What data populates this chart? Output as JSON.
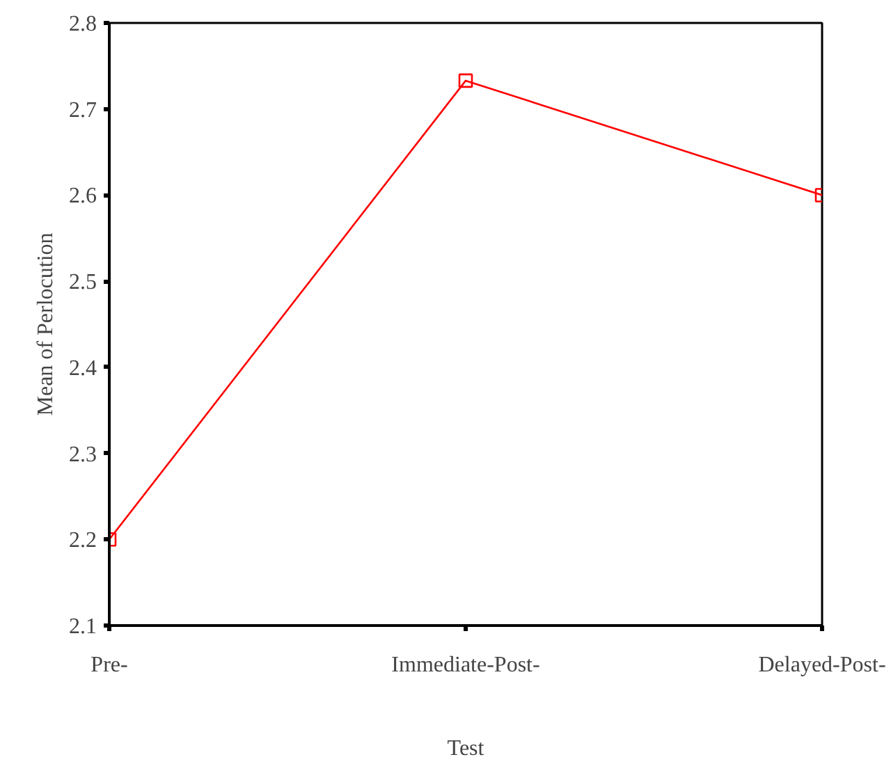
{
  "chart_data": {
    "type": "line",
    "xlabel": "Test",
    "ylabel": "Mean of Perlocution",
    "categories": [
      "Pre-",
      "Immediate-Post-",
      "Delayed-Post-"
    ],
    "series": [
      {
        "color": "#ff0000",
        "values": [
          2.2,
          2.733,
          2.6
        ]
      }
    ],
    "ylim": [
      2.1,
      2.8
    ],
    "yticks": [
      2.1,
      2.2,
      2.3,
      2.4,
      2.5,
      2.6,
      2.7,
      2.8
    ],
    "grid": false,
    "marker": "square",
    "line_style": "solid"
  }
}
